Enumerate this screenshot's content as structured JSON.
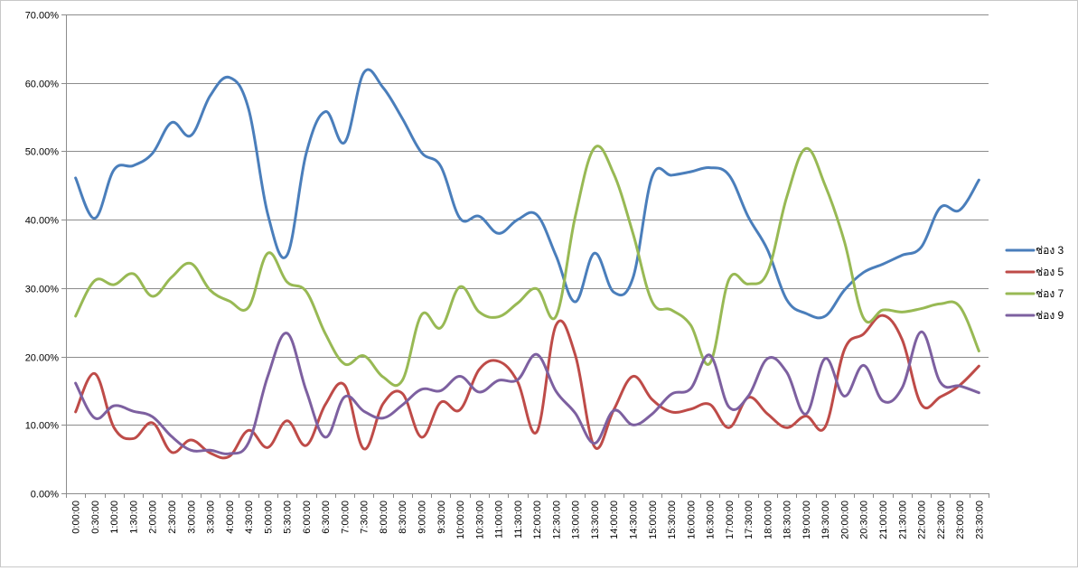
{
  "chart_data": {
    "type": "line",
    "title": "",
    "xlabel": "",
    "ylabel": "",
    "ylim": [
      0,
      70
    ],
    "ytick_values": [
      0,
      10,
      20,
      30,
      40,
      50,
      60,
      70
    ],
    "ytick_labels": [
      "0.00%",
      "10.00%",
      "20.00%",
      "30.00%",
      "40.00%",
      "50.00%",
      "60.00%",
      "70.00%"
    ],
    "grid": true,
    "legend_position": "right",
    "smooth": true,
    "categories": [
      "0:00:00",
      "0:30:00",
      "1:00:00",
      "1:30:00",
      "2:00:00",
      "2:30:00",
      "3:00:00",
      "3:30:00",
      "4:00:00",
      "4:30:00",
      "5:00:00",
      "5:30:00",
      "6:00:00",
      "6:30:00",
      "7:00:00",
      "7:30:00",
      "8:00:00",
      "8:30:00",
      "9:00:00",
      "9:30:00",
      "10:00:00",
      "10:30:00",
      "11:00:00",
      "11:30:00",
      "12:00:00",
      "12:30:00",
      "13:00:00",
      "13:30:00",
      "14:00:00",
      "14:30:00",
      "15:00:00",
      "15:30:00",
      "16:00:00",
      "16:30:00",
      "17:00:00",
      "17:30:00",
      "18:00:00",
      "18:30:00",
      "19:00:00",
      "19:30:00",
      "20:00:00",
      "20:30:00",
      "21:00:00",
      "21:30:00",
      "22:00:00",
      "22:30:00",
      "23:00:00",
      "23:30:00"
    ],
    "series": [
      {
        "name": "ช่อง 3",
        "color": "#4a7ebb",
        "values": [
          46.1,
          40.2,
          47.3,
          47.9,
          49.7,
          54.2,
          52.3,
          58.1,
          60.8,
          56.2,
          40.8,
          34.8,
          49.7,
          55.8,
          51.3,
          61.5,
          59.3,
          54.8,
          49.8,
          47.8,
          40.2,
          40.5,
          38.0,
          40.0,
          40.7,
          34.7,
          28.0,
          35.1,
          29.4,
          31.5,
          46.3,
          46.5,
          47.0,
          47.6,
          46.5,
          40.4,
          35.6,
          28.3,
          26.3,
          25.9,
          29.7,
          32.3,
          33.5,
          34.8,
          36.0,
          41.8,
          41.4,
          45.8
        ]
      },
      {
        "name": "ช่อง 5",
        "color": "#be4b48",
        "values": [
          11.9,
          17.5,
          9.6,
          8.0,
          10.3,
          6.0,
          7.8,
          5.9,
          5.4,
          9.2,
          6.7,
          10.6,
          7.0,
          13.0,
          15.8,
          6.5,
          13.1,
          14.6,
          8.2,
          13.3,
          12.2,
          18.1,
          19.3,
          16.3,
          9.0,
          24.6,
          20.2,
          6.8,
          12.2,
          17.1,
          13.7,
          11.9,
          12.3,
          13.0,
          9.6,
          14.0,
          11.6,
          9.6,
          11.3,
          9.7,
          21.0,
          23.3,
          26.0,
          22.5,
          13.0,
          14.1,
          15.8,
          18.6
        ]
      },
      {
        "name": "ช่อง 7",
        "color": "#98b954",
        "values": [
          25.9,
          31.1,
          30.5,
          32.1,
          28.8,
          31.6,
          33.6,
          29.7,
          28.1,
          27.2,
          35.1,
          30.9,
          29.5,
          23.3,
          18.9,
          20.1,
          17.0,
          16.5,
          26.1,
          24.2,
          30.2,
          26.5,
          25.8,
          27.8,
          29.9,
          25.9,
          40.5,
          50.5,
          46.7,
          38.0,
          28.0,
          26.8,
          24.6,
          19.0,
          31.3,
          30.6,
          32.3,
          43.3,
          50.4,
          45.0,
          36.8,
          25.6,
          26.8,
          26.5,
          27.0,
          27.7,
          27.3,
          20.8
        ]
      },
      {
        "name": "ช่อง 9",
        "color": "#7d60a0",
        "values": [
          16.1,
          11.0,
          12.8,
          12.0,
          11.2,
          8.3,
          6.3,
          6.3,
          5.8,
          7.4,
          17.1,
          23.4,
          15.0,
          8.2,
          14.1,
          12.0,
          11.0,
          12.9,
          15.2,
          15.0,
          17.1,
          14.8,
          16.5,
          16.6,
          20.3,
          14.9,
          11.7,
          7.3,
          12.1,
          10.0,
          11.6,
          14.5,
          15.3,
          20.2,
          12.6,
          14.2,
          19.7,
          17.7,
          11.6,
          19.7,
          14.2,
          18.7,
          13.5,
          15.4,
          23.6,
          16.2,
          15.7,
          14.7
        ]
      }
    ]
  }
}
